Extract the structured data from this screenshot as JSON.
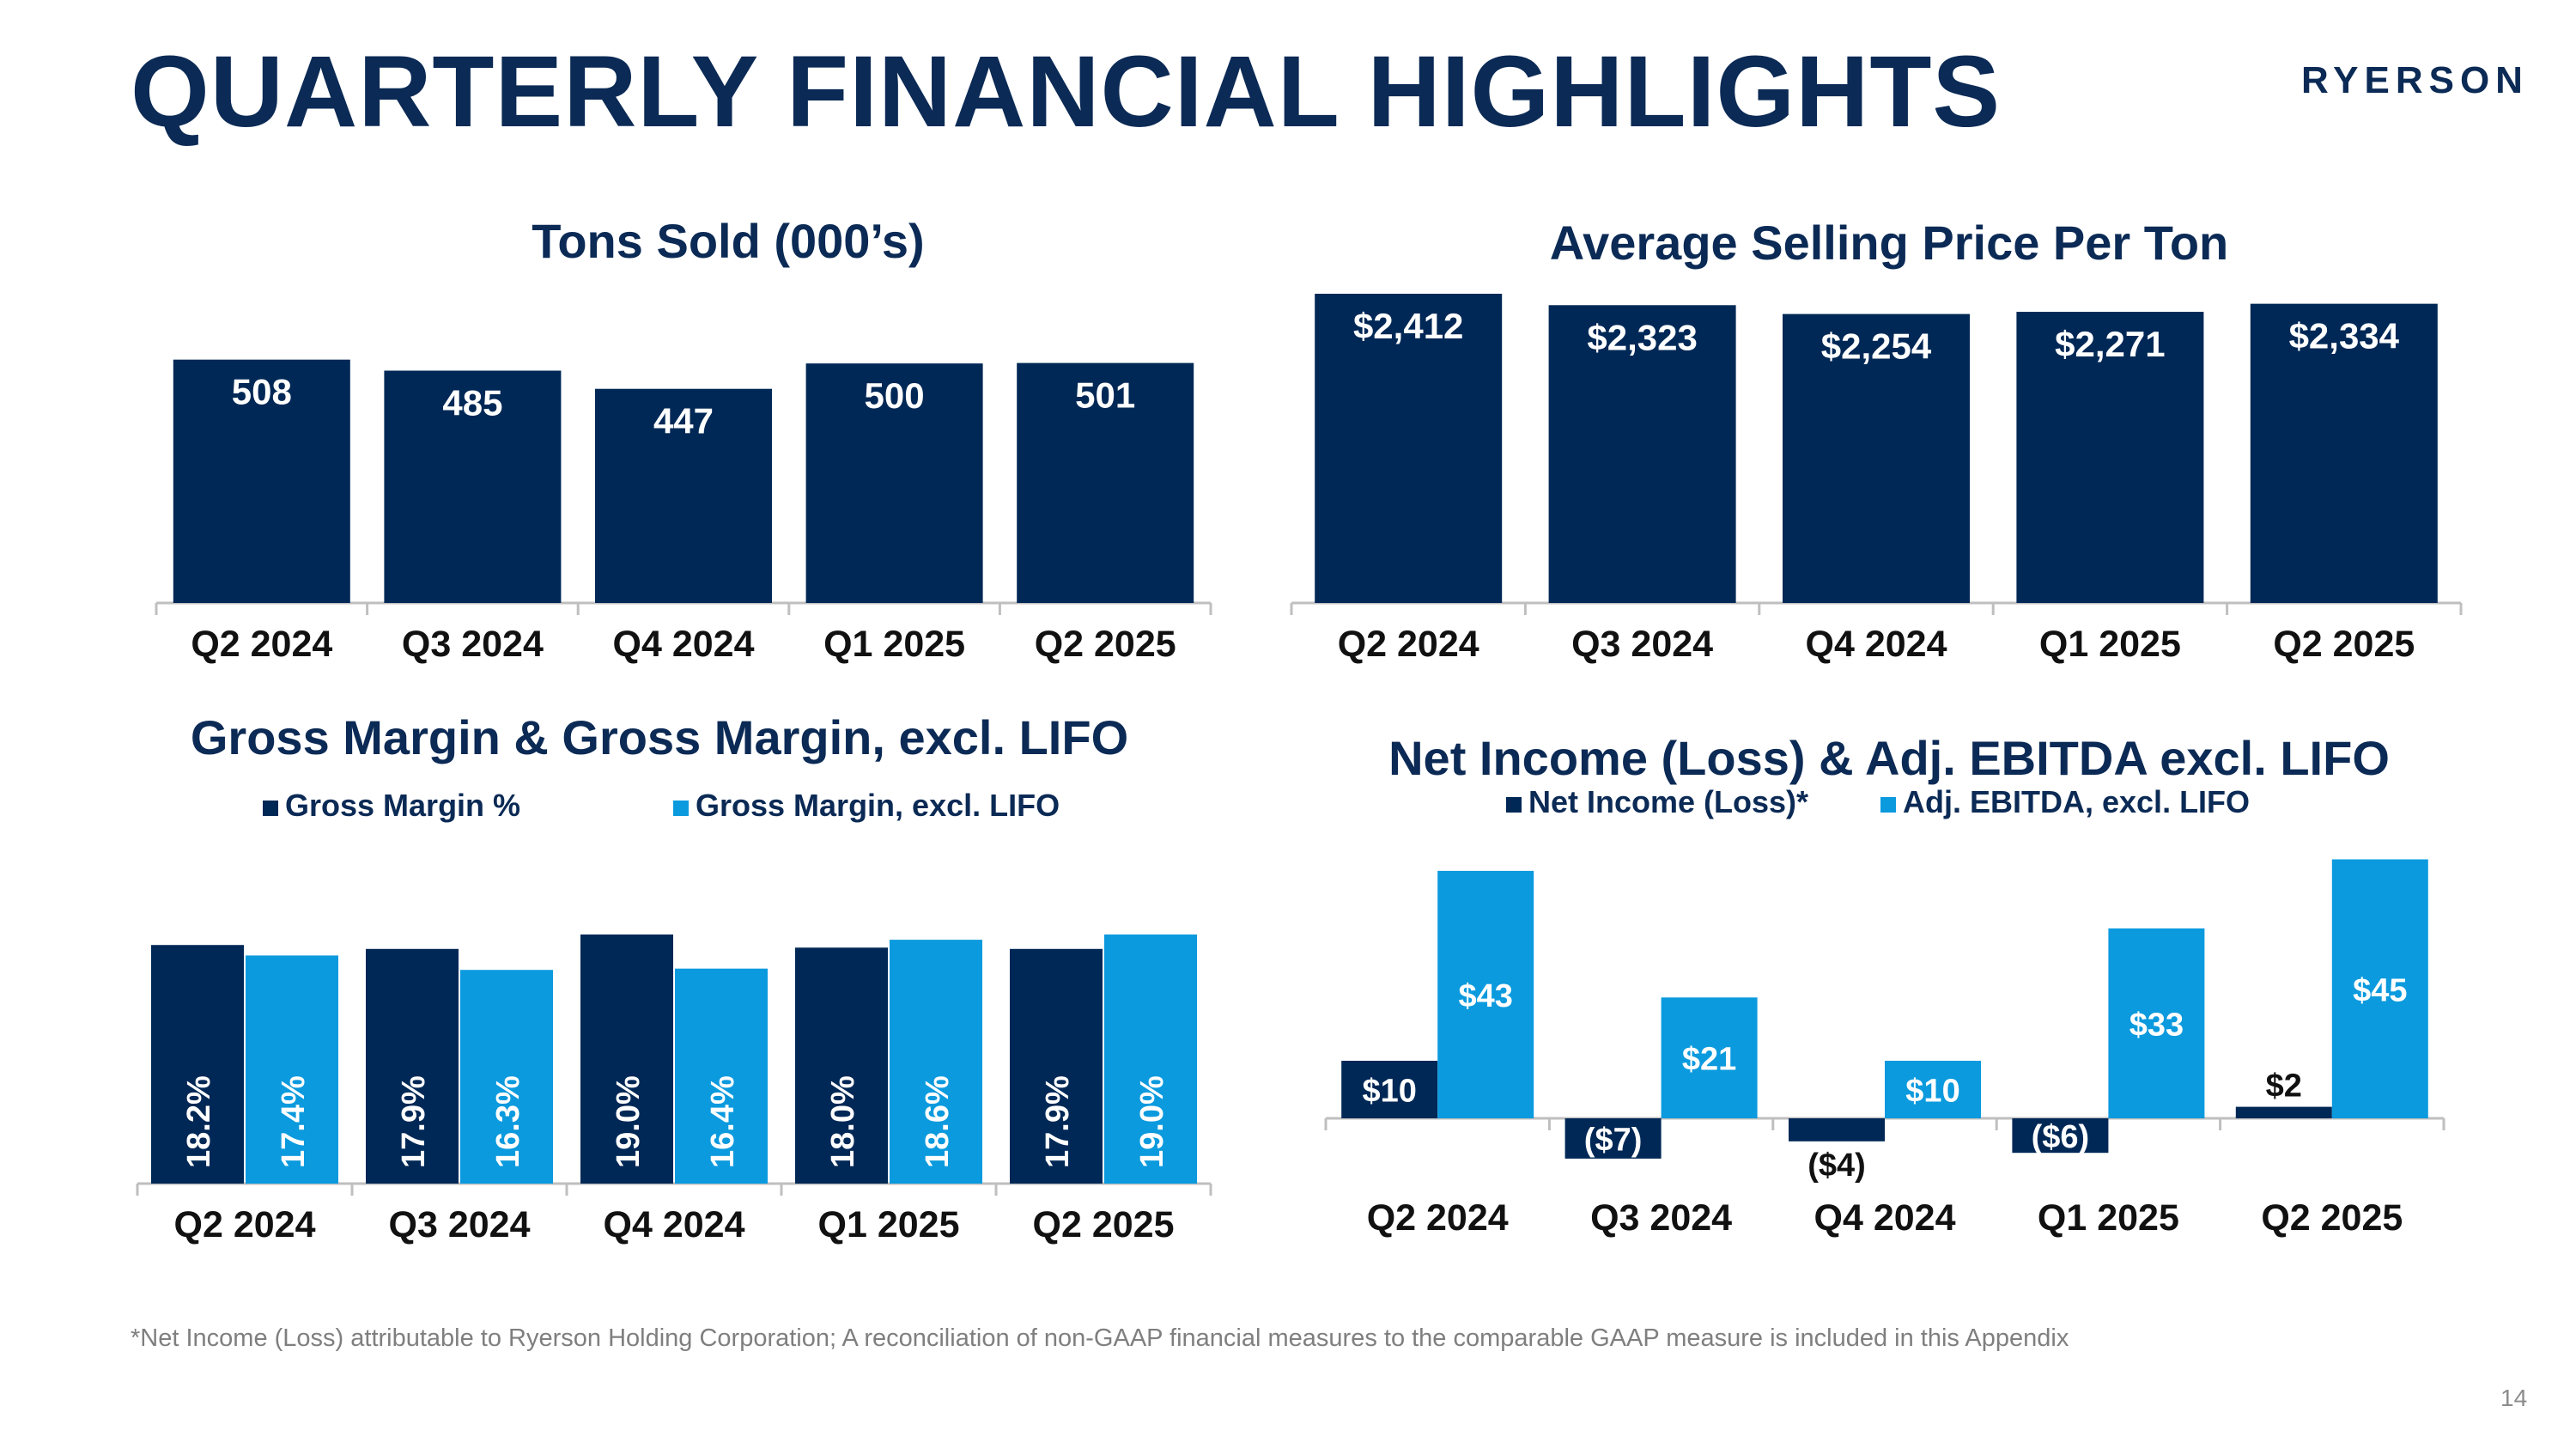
{
  "page": {
    "title": "QUARTERLY FINANCIAL HIGHLIGHTS",
    "logo": "RYERSON",
    "footnote": "*Net Income (Loss) attributable to Ryerson Holding Corporation; A reconciliation of non-GAAP financial measures to the comparable GAAP measure is included in this Appendix",
    "page_number": "14"
  },
  "colors": {
    "title": "#0b2a55",
    "navy": "#002856",
    "light_blue": "#0b9ade",
    "axis": "#bfbfbf",
    "footnote": "#7f7f7f"
  },
  "chart_data": [
    {
      "type": "bar",
      "title": "Tons Sold (000’s)",
      "categories": [
        "Q2 2024",
        "Q3 2024",
        "Q4 2024",
        "Q1 2025",
        "Q2 2025"
      ],
      "series": [
        {
          "name": "Tons Sold",
          "values": [
            508,
            485,
            447,
            500,
            501
          ],
          "labels": [
            "508",
            "485",
            "447",
            "500",
            "501"
          ]
        }
      ],
      "ylim": [
        0,
        520
      ],
      "grid": false,
      "legend": "none",
      "xlabel": "",
      "ylabel": ""
    },
    {
      "type": "bar",
      "title": "Average Selling Price Per Ton",
      "categories": [
        "Q2 2024",
        "Q3 2024",
        "Q4 2024",
        "Q1 2025",
        "Q2 2025"
      ],
      "series": [
        {
          "name": "Average Selling Price Per Ton",
          "values": [
            2412,
            2323,
            2254,
            2271,
            2334
          ],
          "labels": [
            "$2,412",
            "$2,323",
            "$2,254",
            "$2,271",
            "$2,334"
          ]
        }
      ],
      "ylim": [
        0,
        2412
      ],
      "grid": false,
      "legend": "none",
      "xlabel": "",
      "ylabel": ""
    },
    {
      "type": "bar",
      "title": "Gross Margin & Gross Margin, excl. LIFO",
      "categories": [
        "Q2 2024",
        "Q3 2024",
        "Q4 2024",
        "Q1 2025",
        "Q2 2025"
      ],
      "series": [
        {
          "name": "Gross Margin %",
          "values": [
            18.2,
            17.9,
            19.0,
            18.0,
            17.9
          ],
          "labels": [
            "18.2%",
            "17.9%",
            "19.0%",
            "18.0%",
            "17.9%"
          ]
        },
        {
          "name": "Gross Margin, excl. LIFO",
          "values": [
            17.4,
            16.3,
            16.4,
            18.6,
            19.0
          ],
          "labels": [
            "17.4%",
            "16.3%",
            "16.4%",
            "18.6%",
            "19.0%"
          ]
        }
      ],
      "ylim": [
        0,
        19.0
      ],
      "grid": false,
      "legend": "top",
      "label_orientation": "vertical",
      "xlabel": "",
      "ylabel": ""
    },
    {
      "type": "bar",
      "title": "Net Income (Loss) & Adj. EBITDA excl. LIFO",
      "categories": [
        "Q2 2024",
        "Q3 2024",
        "Q4 2024",
        "Q1 2025",
        "Q2 2025"
      ],
      "series": [
        {
          "name": "Net Income (Loss)*",
          "values": [
            10,
            -7,
            -4,
            -6,
            2
          ],
          "labels": [
            "$10",
            "($7)",
            "($4)",
            "($6)",
            "$2"
          ]
        },
        {
          "name": "Adj. EBITDA, excl. LIFO",
          "values": [
            43,
            21,
            10,
            33,
            45
          ],
          "labels": [
            "$43",
            "$21",
            "$10",
            "$33",
            "$45"
          ]
        }
      ],
      "ylim": [
        -7,
        45
      ],
      "grid": false,
      "legend": "top",
      "xlabel": "",
      "ylabel": ""
    }
  ]
}
